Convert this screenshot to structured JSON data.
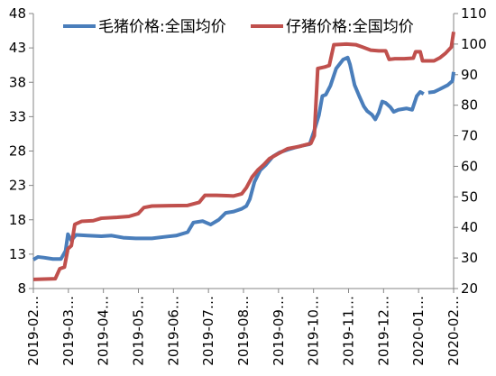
{
  "chart_data": {
    "type": "line",
    "title": "",
    "xlabel": "",
    "ylabel_left": "",
    "ylabel_right": "",
    "x_start": "2019-02",
    "x_end": "2020-02",
    "x_ticks": [
      "2019-02…",
      "2019-03…",
      "2019-04…",
      "2019-05…",
      "2019-06…",
      "2019-07…",
      "2019-08…",
      "2019-09…",
      "2019-10…",
      "2019-11…",
      "2019-12…",
      "2020-01…",
      "2020-02…"
    ],
    "y_left": {
      "ticks": [
        8,
        13,
        18,
        23,
        28,
        33,
        38,
        43,
        48
      ],
      "ylim": [
        8,
        48
      ]
    },
    "y_right": {
      "ticks": [
        20,
        30,
        40,
        50,
        60,
        70,
        80,
        90,
        100,
        110
      ],
      "ylim": [
        20,
        110
      ]
    },
    "grid": false,
    "legend_position": "top",
    "series": [
      {
        "name": "毛猪价格:全国均价",
        "axis": "left",
        "color": "#4a7ebb",
        "points": [
          [
            "2019-02-01",
            12.2
          ],
          [
            "2019-02-05",
            12.6
          ],
          [
            "2019-02-10",
            12.5
          ],
          [
            "2019-02-18",
            12.3
          ],
          [
            "2019-02-25",
            12.3
          ],
          [
            "2019-03-01",
            13.5
          ],
          [
            "2019-03-03",
            15.9
          ],
          [
            "2019-03-06",
            15.0
          ],
          [
            "2019-03-10",
            15.8
          ],
          [
            "2019-03-20",
            15.7
          ],
          [
            "2019-04-01",
            15.6
          ],
          [
            "2019-04-10",
            15.7
          ],
          [
            "2019-04-20",
            15.4
          ],
          [
            "2019-05-01",
            15.3
          ],
          [
            "2019-05-15",
            15.3
          ],
          [
            "2019-05-25",
            15.5
          ],
          [
            "2019-06-05",
            15.7
          ],
          [
            "2019-06-15",
            16.2
          ],
          [
            "2019-06-20",
            17.6
          ],
          [
            "2019-06-28",
            17.8
          ],
          [
            "2019-07-05",
            17.3
          ],
          [
            "2019-07-12",
            18.0
          ],
          [
            "2019-07-18",
            19.0
          ],
          [
            "2019-07-25",
            19.2
          ],
          [
            "2019-08-01",
            19.6
          ],
          [
            "2019-08-05",
            20.0
          ],
          [
            "2019-08-08",
            21.0
          ],
          [
            "2019-08-12",
            23.5
          ],
          [
            "2019-08-17",
            25.2
          ],
          [
            "2019-08-22",
            26.0
          ],
          [
            "2019-08-28",
            27.2
          ],
          [
            "2019-09-03",
            27.8
          ],
          [
            "2019-09-10",
            28.2
          ],
          [
            "2019-09-16",
            28.5
          ],
          [
            "2019-09-23",
            28.8
          ],
          [
            "2019-09-29",
            29.0
          ],
          [
            "2019-10-03",
            31.0
          ],
          [
            "2019-10-07",
            33.2
          ],
          [
            "2019-10-10",
            36.0
          ],
          [
            "2019-10-13",
            36.2
          ],
          [
            "2019-10-17",
            37.5
          ],
          [
            "2019-10-22",
            40.0
          ],
          [
            "2019-10-28",
            41.3
          ],
          [
            "2019-11-01",
            41.6
          ],
          [
            "2019-11-03",
            40.6
          ],
          [
            "2019-11-07",
            37.6
          ],
          [
            "2019-11-11",
            36.0
          ],
          [
            "2019-11-15",
            34.5
          ],
          [
            "2019-11-18",
            33.8
          ],
          [
            "2019-11-22",
            33.3
          ],
          [
            "2019-11-25",
            32.6
          ],
          [
            "2019-11-28",
            33.6
          ],
          [
            "2019-12-01",
            35.2
          ],
          [
            "2019-12-04",
            35.0
          ],
          [
            "2019-12-08",
            34.4
          ],
          [
            "2019-12-11",
            33.7
          ],
          [
            "2019-12-15",
            34.0
          ],
          [
            "2019-12-22",
            34.2
          ],
          [
            "2019-12-27",
            34.0
          ],
          [
            "2019-12-31",
            36.0
          ],
          [
            "2020-01-03",
            36.6
          ],
          [
            "2020-01-06",
            36.3
          ],
          null,
          [
            "2020-01-10",
            36.5
          ],
          [
            "2020-01-15",
            36.6
          ],
          [
            "2020-01-20",
            37.0
          ],
          [
            "2020-01-27",
            37.6
          ],
          [
            "2020-01-31",
            38.2
          ],
          [
            "2020-02-01",
            39.5
          ]
        ]
      },
      {
        "name": "仔猪价格:全国均价",
        "axis": "right",
        "color": "#c0504d",
        "points": [
          [
            "2019-02-01",
            23.0
          ],
          [
            "2019-02-20",
            23.2
          ],
          [
            "2019-02-24",
            26.5
          ],
          [
            "2019-02-28",
            27.0
          ],
          [
            "2019-03-03",
            33.0
          ],
          [
            "2019-03-06",
            34.0
          ],
          [
            "2019-03-09",
            41.0
          ],
          [
            "2019-03-15",
            42.0
          ],
          [
            "2019-03-25",
            42.2
          ],
          [
            "2019-04-01",
            43.0
          ],
          [
            "2019-04-15",
            43.3
          ],
          [
            "2019-04-25",
            43.6
          ],
          [
            "2019-05-03",
            44.5
          ],
          [
            "2019-05-08",
            46.5
          ],
          [
            "2019-05-15",
            47.0
          ],
          [
            "2019-05-30",
            47.1
          ],
          [
            "2019-06-15",
            47.2
          ],
          [
            "2019-06-25",
            48.2
          ],
          [
            "2019-06-30",
            50.5
          ],
          [
            "2019-07-10",
            50.5
          ],
          [
            "2019-07-25",
            50.3
          ],
          [
            "2019-08-01",
            51.0
          ],
          [
            "2019-08-05",
            53.0
          ],
          [
            "2019-08-10",
            56.5
          ],
          [
            "2019-08-15",
            58.8
          ],
          [
            "2019-08-20",
            60.5
          ],
          [
            "2019-08-25",
            62.5
          ],
          [
            "2019-09-01",
            64.0
          ],
          [
            "2019-09-10",
            65.8
          ],
          [
            "2019-09-20",
            66.5
          ],
          [
            "2019-09-30",
            67.5
          ],
          [
            "2019-10-03",
            70.0
          ],
          [
            "2019-10-06",
            92.0
          ],
          [
            "2019-10-12",
            92.5
          ],
          [
            "2019-10-16",
            93.0
          ],
          [
            "2019-10-20",
            99.8
          ],
          [
            "2019-10-31",
            100.0
          ],
          [
            "2019-11-08",
            99.8
          ],
          [
            "2019-11-14",
            99.0
          ],
          [
            "2019-11-21",
            98.0
          ],
          [
            "2019-11-28",
            97.8
          ],
          [
            "2019-12-04",
            97.8
          ],
          [
            "2019-12-07",
            95.0
          ],
          [
            "2019-12-12",
            95.2
          ],
          [
            "2019-12-20",
            95.2
          ],
          [
            "2019-12-28",
            95.4
          ],
          [
            "2019-12-30",
            97.5
          ],
          [
            "2020-01-03",
            97.5
          ],
          [
            "2020-01-05",
            94.5
          ],
          [
            "2020-01-15",
            94.5
          ],
          [
            "2020-01-20",
            95.5
          ],
          [
            "2020-01-25",
            97.0
          ],
          [
            "2020-01-30",
            99.0
          ],
          [
            "2020-02-01",
            104.0
          ]
        ]
      }
    ]
  }
}
